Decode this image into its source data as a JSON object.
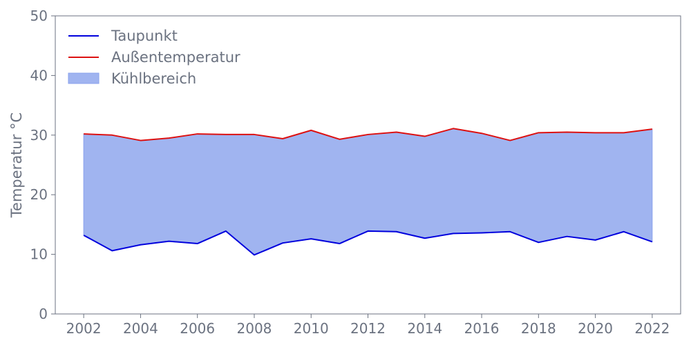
{
  "chart_data": {
    "type": "area",
    "ylabel": "Temperatur °C",
    "xlabel": "",
    "x": [
      2002,
      2003,
      2004,
      2005,
      2006,
      2007,
      2008,
      2009,
      2010,
      2011,
      2012,
      2013,
      2014,
      2015,
      2016,
      2017,
      2018,
      2019,
      2020,
      2021,
      2022
    ],
    "xticks": [
      2002,
      2004,
      2006,
      2008,
      2010,
      2012,
      2014,
      2016,
      2018,
      2020,
      2022
    ],
    "xlim": [
      2001,
      2023
    ],
    "yticks": [
      0,
      10,
      20,
      30,
      40,
      50
    ],
    "ylim": [
      0,
      50
    ],
    "grid": false,
    "legend_position": "top-left",
    "series": [
      {
        "name": "Taupunkt",
        "color": "#0000dd",
        "values": [
          13.2,
          10.6,
          11.6,
          12.2,
          11.8,
          13.9,
          9.9,
          11.9,
          12.6,
          11.8,
          13.9,
          13.8,
          12.7,
          13.5,
          13.6,
          13.8,
          12.0,
          13.0,
          12.4,
          13.8,
          12.1
        ]
      },
      {
        "name": "Außentemperatur",
        "color": "#dd1111",
        "values": [
          30.2,
          30.0,
          29.1,
          29.5,
          30.2,
          30.1,
          30.1,
          29.4,
          30.8,
          29.3,
          30.1,
          30.5,
          29.8,
          31.1,
          30.3,
          29.1,
          30.4,
          30.5,
          30.4,
          30.4,
          31.0
        ]
      }
    ],
    "fill": {
      "name": "Kühlbereich",
      "color": "#a0b4f0",
      "edge_color": "#8aa2ec",
      "between": [
        "Taupunkt",
        "Außentemperatur"
      ]
    }
  }
}
